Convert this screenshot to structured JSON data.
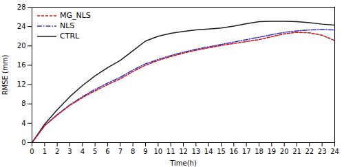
{
  "chart_data": {
    "type": "line",
    "xlabel": "Time(h)",
    "ylabel": "RMSE (mm)",
    "x": [
      0,
      1,
      2,
      3,
      4,
      5,
      6,
      7,
      8,
      9,
      10,
      11,
      12,
      13,
      14,
      15,
      16,
      17,
      18,
      19,
      20,
      21,
      22,
      23,
      24
    ],
    "xlim": [
      0,
      24
    ],
    "xticks": [
      0,
      1,
      2,
      3,
      4,
      5,
      6,
      7,
      8,
      9,
      10,
      11,
      12,
      13,
      14,
      15,
      16,
      17,
      18,
      19,
      20,
      21,
      22,
      23,
      24
    ],
    "ylim": [
      0,
      28
    ],
    "yticks": [
      0,
      4,
      8,
      12,
      16,
      20,
      24,
      28
    ],
    "grid": false,
    "legend": "upper left",
    "series": [
      {
        "name": "MG_NLS",
        "color": "#cc1111",
        "line_style": "dashed",
        "values": [
          0.0,
          3.5,
          5.7,
          7.7,
          9.3,
          10.7,
          12.0,
          13.2,
          14.7,
          16.0,
          17.0,
          17.8,
          18.5,
          19.1,
          19.6,
          20.1,
          20.5,
          20.9,
          21.3,
          21.9,
          22.5,
          22.8,
          22.7,
          22.2,
          21.1
        ]
      },
      {
        "name": "NLS",
        "color": "#3333cc",
        "line_style": "dashdot",
        "values": [
          0.0,
          3.5,
          5.8,
          7.8,
          9.5,
          11.0,
          12.3,
          13.5,
          15.0,
          16.3,
          17.2,
          18.0,
          18.7,
          19.3,
          19.8,
          20.3,
          20.8,
          21.3,
          21.8,
          22.3,
          22.8,
          23.1,
          23.3,
          23.4,
          23.3
        ]
      },
      {
        "name": "CTRL",
        "color": "#1a1a1a",
        "line_style": "solid",
        "values": [
          0.0,
          3.8,
          6.8,
          9.5,
          11.8,
          13.8,
          15.5,
          17.0,
          19.0,
          21.0,
          22.0,
          22.6,
          23.0,
          23.3,
          23.5,
          23.7,
          24.1,
          24.6,
          25.0,
          25.1,
          25.1,
          25.0,
          24.8,
          24.5,
          24.3
        ]
      }
    ]
  }
}
